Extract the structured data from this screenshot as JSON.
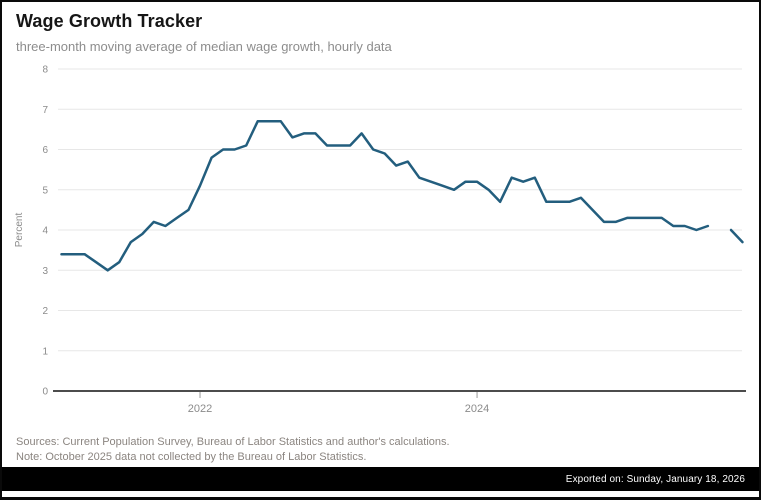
{
  "header": {
    "title": "Wage Growth Tracker",
    "subtitle": "three-month moving average of median wage growth, hourly data"
  },
  "chart_data": {
    "type": "line",
    "title": "Wage Growth Tracker",
    "subtitle": "three-month moving average of median wage growth, hourly data",
    "xlabel": "",
    "ylabel": "Percent",
    "ylim": [
      0,
      8
    ],
    "yticks": [
      0,
      1,
      2,
      3,
      4,
      5,
      6,
      7,
      8
    ],
    "grid": "horizontal",
    "legend": "none",
    "xticks": [
      {
        "label": "2022",
        "month_index": 12
      },
      {
        "label": "2024",
        "month_index": 36
      }
    ],
    "x": [
      "2021-01",
      "2021-02",
      "2021-03",
      "2021-04",
      "2021-05",
      "2021-06",
      "2021-07",
      "2021-08",
      "2021-09",
      "2021-10",
      "2021-11",
      "2021-12",
      "2022-01",
      "2022-02",
      "2022-03",
      "2022-04",
      "2022-05",
      "2022-06",
      "2022-07",
      "2022-08",
      "2022-09",
      "2022-10",
      "2022-11",
      "2022-12",
      "2023-01",
      "2023-02",
      "2023-03",
      "2023-04",
      "2023-05",
      "2023-06",
      "2023-07",
      "2023-08",
      "2023-09",
      "2023-10",
      "2023-11",
      "2023-12",
      "2024-01",
      "2024-02",
      "2024-03",
      "2024-04",
      "2024-05",
      "2024-06",
      "2024-07",
      "2024-08",
      "2024-09",
      "2024-10",
      "2024-11",
      "2024-12",
      "2025-01",
      "2025-02",
      "2025-03",
      "2025-04",
      "2025-05",
      "2025-06",
      "2025-07",
      "2025-08",
      "2025-09",
      "2025-10",
      "2025-11",
      "2025-12"
    ],
    "series": [
      {
        "name": "Median wage growth, 3-month moving average (hourly)",
        "values": [
          3.4,
          3.4,
          3.4,
          3.2,
          3.0,
          3.2,
          3.7,
          3.9,
          4.2,
          4.1,
          4.3,
          4.5,
          5.1,
          5.8,
          6.0,
          6.0,
          6.1,
          6.7,
          6.7,
          6.7,
          6.3,
          6.4,
          6.4,
          6.1,
          6.1,
          6.1,
          6.4,
          6.0,
          5.9,
          5.6,
          5.7,
          5.3,
          5.2,
          5.1,
          5.0,
          5.2,
          5.2,
          5.0,
          4.7,
          5.3,
          5.2,
          5.3,
          4.7,
          4.7,
          4.7,
          4.8,
          4.5,
          4.2,
          4.2,
          4.3,
          4.3,
          4.3,
          4.3,
          4.1,
          4.1,
          4.0,
          4.1,
          null,
          4.0,
          3.7
        ]
      }
    ],
    "data_gap_note": "2025-10 value missing (line break in chart)"
  },
  "footer": {
    "sources": "Sources: Current Population Survey, Bureau of Labor Statistics and author's calculations.",
    "note": "Note: October 2025 data not collected by the Bureau of Labor Statistics."
  },
  "export_bar": {
    "label": "Exported on: Sunday, January 18, 2026"
  },
  "colors": {
    "line": "#235e7e",
    "axis_baseline": "#4c4c4c",
    "gridline": "#e7e7e7",
    "tick_mark": "#999999",
    "tick_label": "#8b8b8b",
    "title_text": "#161616",
    "subtitle_text": "#8d8d8d",
    "footnote_text": "#8b8580",
    "export_bg": "#000000",
    "export_text": "#ffffff"
  }
}
